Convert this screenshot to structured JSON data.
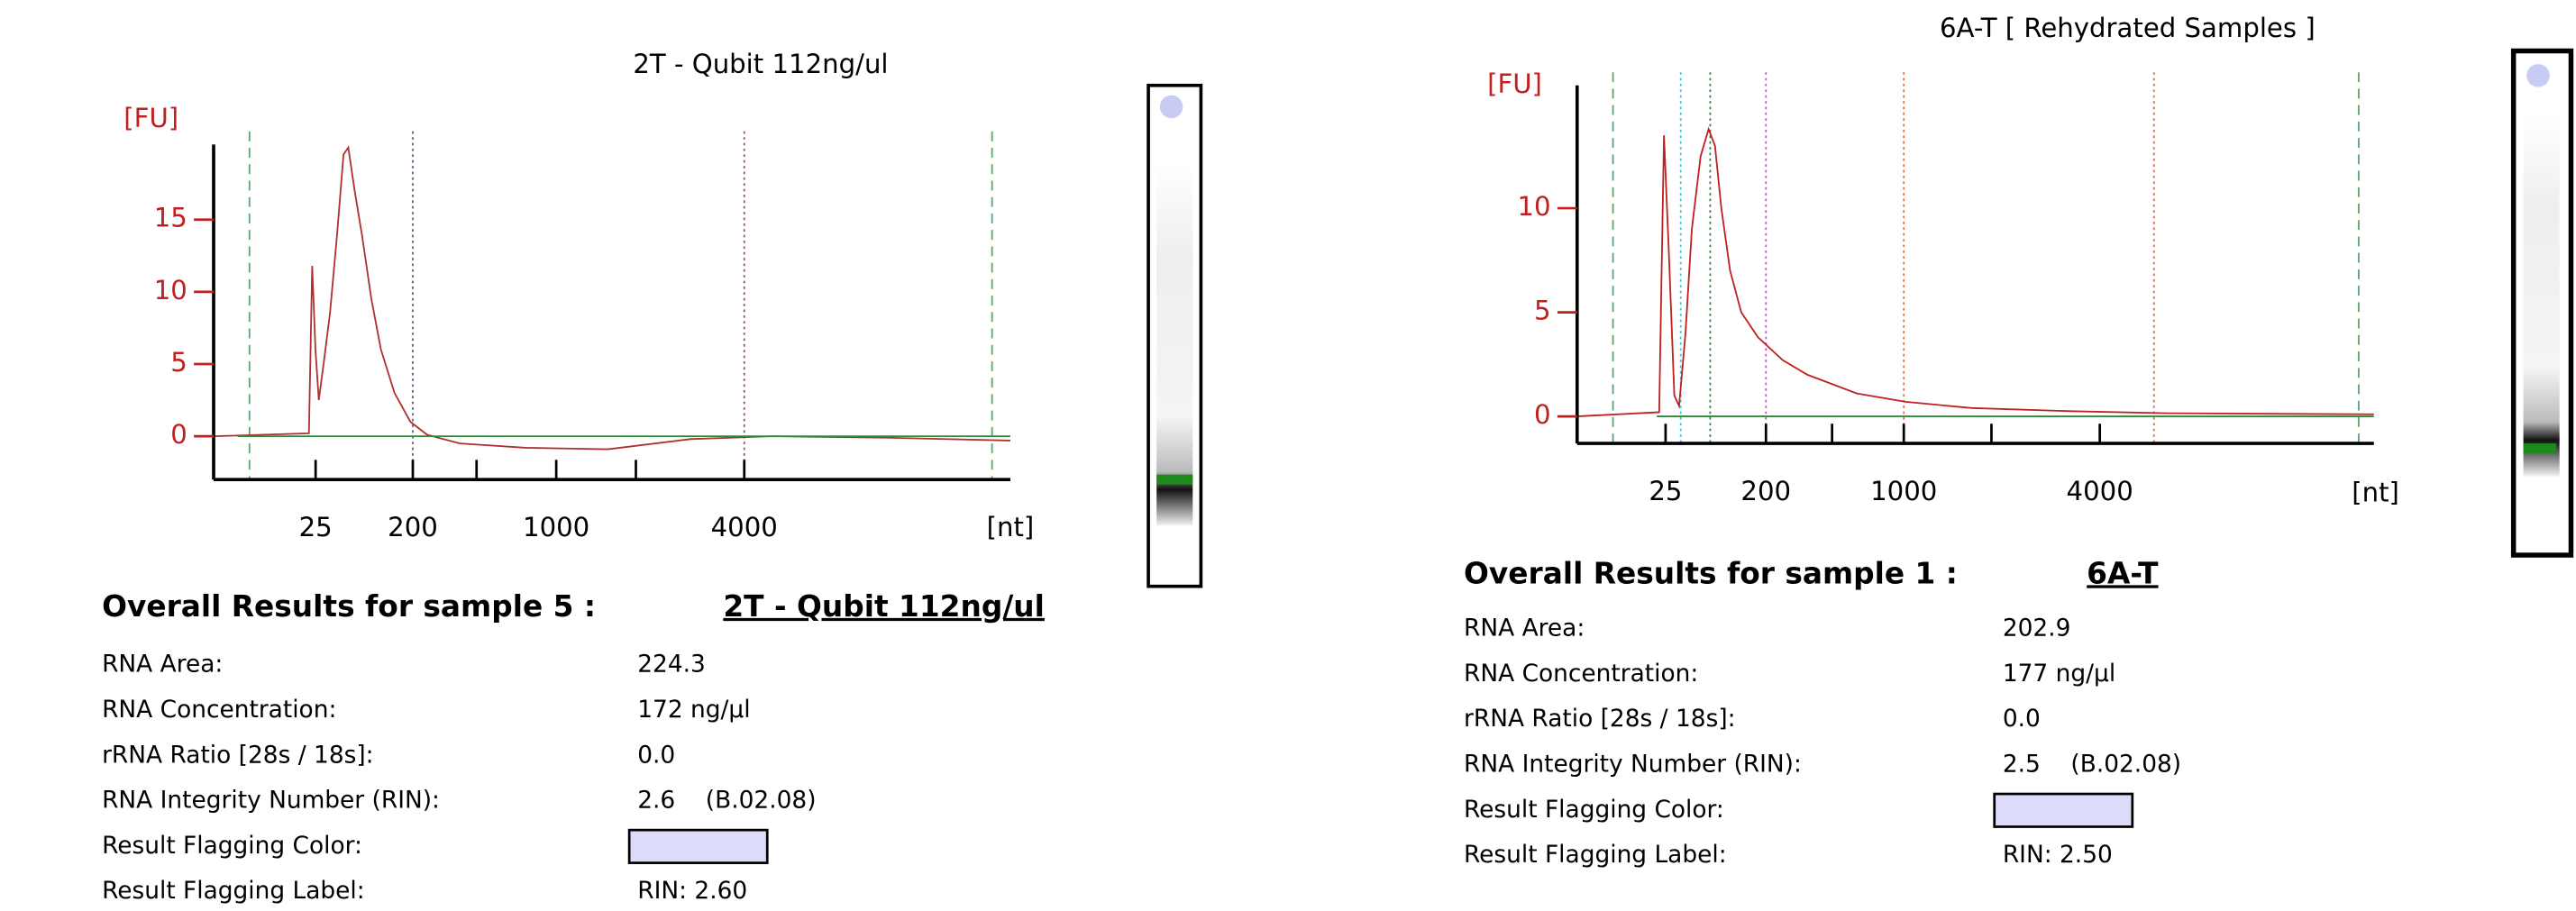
{
  "chart_data": [
    {
      "type": "line",
      "title": "2T - Qubit 112ng/ul",
      "ylabel": "[FU]",
      "xlabel": "[nt]",
      "xlim": [
        0,
        100
      ],
      "ylim": [
        -3,
        20.2
      ],
      "xticks": [
        {
          "value": 12.8,
          "label": "25"
        },
        {
          "value": 25,
          "label": "200"
        },
        {
          "value": 33,
          "label": ""
        },
        {
          "value": 43,
          "label": "1000"
        },
        {
          "value": 53,
          "label": ""
        },
        {
          "value": 66.6,
          "label": "4000"
        }
      ],
      "yticks": [
        0,
        5,
        10,
        15
      ],
      "markers": [
        {
          "x": 4.5,
          "color": "#5aa86e",
          "style": "dashed"
        },
        {
          "x": 25,
          "color": "#6b5a8a",
          "style": "dotted"
        },
        {
          "x": 66.6,
          "color": "#a05050",
          "style": "dotted"
        },
        {
          "x": 97.7,
          "color": "#5aa86e",
          "style": "dashed"
        }
      ],
      "series": [
        {
          "color": "#b03030",
          "x": [
            0,
            11.96,
            12.37,
            12.78,
            13.2,
            13.8,
            14.6,
            15.5,
            16.3,
            16.9,
            17.7,
            18.6,
            19.8,
            21,
            22.7,
            24.7,
            26.8,
            30.9,
            39.2,
            49.5,
            59.8,
            70.1,
            84.5,
            100
          ],
          "values": [
            0,
            0.2,
            11.8,
            6,
            2.5,
            5,
            8.5,
            14,
            19.5,
            20,
            17,
            14,
            9.5,
            6,
            3,
            1,
            0.1,
            -0.5,
            -0.8,
            -0.9,
            -0.2,
            0,
            -0.1,
            -0.3
          ]
        },
        {
          "color": "#2e8b3a",
          "x": [
            3,
            100
          ],
          "values": [
            0,
            0
          ]
        }
      ],
      "results": {
        "heading": "Overall Results for sample 5  :",
        "sample_name": "2T - Qubit 112ng/ul",
        "rows": [
          {
            "label": "RNA Area:",
            "value": "224.3"
          },
          {
            "label": "RNA Concentration:",
            "value": "172 ng/µl"
          },
          {
            "label": "rRNA Ratio [28s / 18s]:",
            "value": "0.0"
          },
          {
            "label": "RNA Integrity Number (RIN):",
            "value": "2.6    (B.02.08)"
          },
          {
            "label": "Result Flagging Color:",
            "color": "#dcdcfa"
          },
          {
            "label": "Result Flagging Label:",
            "value": "RIN: 2.60"
          }
        ]
      }
    },
    {
      "type": "line",
      "title": "6A-T  [ Rehydrated Samples ]",
      "ylabel": "[FU]",
      "xlabel": "[nt]",
      "xlim": [
        0,
        100
      ],
      "ylim": [
        -1.3,
        15.9
      ],
      "xticks": [
        {
          "value": 11.1,
          "label": "25"
        },
        {
          "value": 23.7,
          "label": "200"
        },
        {
          "value": 32,
          "label": ""
        },
        {
          "value": 41,
          "label": "1000"
        },
        {
          "value": 52,
          "label": ""
        },
        {
          "value": 65.6,
          "label": "4000"
        }
      ],
      "yticks": [
        0,
        5,
        10
      ],
      "markers": [
        {
          "x": 4.5,
          "color": "#5aa86e",
          "style": "dashed"
        },
        {
          "x": 13,
          "color": "#3cc8d8",
          "style": "dotted"
        },
        {
          "x": 16.7,
          "color": "#2e8b3a",
          "style": "dotted"
        },
        {
          "x": 23.7,
          "color": "#d050d0",
          "style": "dotted"
        },
        {
          "x": 41,
          "color": "#e07040",
          "style": "dotted"
        },
        {
          "x": 72.4,
          "color": "#e07040",
          "style": "dotted"
        },
        {
          "x": 98.1,
          "color": "#5aa86e",
          "style": "dashed"
        }
      ],
      "series": [
        {
          "color": "#c02020",
          "x": [
            0,
            10.3,
            10.9,
            11.5,
            12.2,
            12.8,
            13.6,
            14.4,
            15.5,
            16.5,
            17.3,
            18.1,
            19.2,
            20.6,
            22.7,
            25.8,
            28.9,
            35.1,
            41.2,
            49.5,
            61.9,
            74.2,
            100
          ],
          "values": [
            0,
            0.2,
            13.5,
            8,
            1,
            0.5,
            4,
            9,
            12.5,
            13.8,
            13,
            10,
            7,
            5,
            3.8,
            2.7,
            2,
            1.1,
            0.7,
            0.4,
            0.25,
            0.15,
            0.1
          ]
        },
        {
          "color": "#2e8b3a",
          "x": [
            10,
            100
          ],
          "values": [
            0,
            0
          ]
        }
      ],
      "results": {
        "heading": "Overall Results for sample 1  :",
        "sample_name": "6A-T",
        "rows": [
          {
            "label": "RNA Area:",
            "value": "202.9"
          },
          {
            "label": "RNA Concentration:",
            "value": "177 ng/µl"
          },
          {
            "label": "rRNA Ratio [28s / 18s]:",
            "value": "0.0"
          },
          {
            "label": "RNA Integrity Number (RIN):",
            "value": "2.5    (B.02.08)"
          },
          {
            "label": "Result Flagging Color:",
            "color": "#dcdcfa"
          },
          {
            "label": "Result Flagging Label:",
            "value": "RIN: 2.50"
          }
        ]
      }
    }
  ]
}
